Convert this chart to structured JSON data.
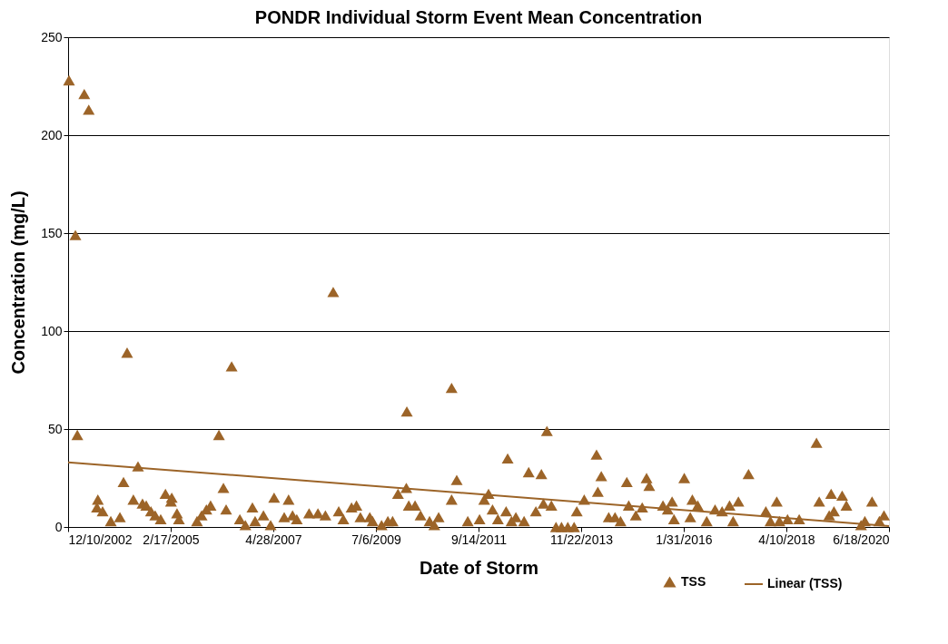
{
  "chart_data": {
    "type": "scatter",
    "title": "PONDR Individual Storm Event Mean Concentration",
    "xlabel": "Date of Storm",
    "ylabel": "Concentration (mg/L)",
    "xlim": [
      "2002-12-10",
      "2020-06-18"
    ],
    "xticks": [
      {
        "value": "2002-12-10",
        "label": "12/10/2002"
      },
      {
        "value": "2005-02-17",
        "label": "2/17/2005"
      },
      {
        "value": "2007-04-28",
        "label": "4/28/2007"
      },
      {
        "value": "2009-07-06",
        "label": "7/6/2009"
      },
      {
        "value": "2011-09-14",
        "label": "9/14/2011"
      },
      {
        "value": "2013-11-22",
        "label": "11/22/2013"
      },
      {
        "value": "2016-01-31",
        "label": "1/31/2016"
      },
      {
        "value": "2018-04-10",
        "label": "4/10/2018"
      },
      {
        "value": "2020-06-18",
        "label": "6/18/2020"
      }
    ],
    "ylim": [
      0,
      250
    ],
    "yticks": [
      0,
      50,
      100,
      150,
      200,
      250
    ],
    "grid": "y",
    "legend": "bottom right",
    "series": [
      {
        "name": "TSS",
        "marker": "triangle",
        "color": "#9c6428",
        "x": [
          "2002-12-17",
          "2003-02-05",
          "2003-02-20",
          "2003-04-15",
          "2003-05-20",
          "2003-07-23",
          "2003-07-30",
          "2003-09-05",
          "2003-11-08",
          "2004-01-18",
          "2004-02-15",
          "2004-03-14",
          "2004-05-02",
          "2004-06-07",
          "2004-07-12",
          "2004-08-10",
          "2004-09-16",
          "2004-10-19",
          "2004-12-01",
          "2005-01-07",
          "2005-02-19",
          "2005-02-25",
          "2005-04-07",
          "2005-04-22",
          "2005-09-10",
          "2005-10-16",
          "2005-11-22",
          "2005-12-25",
          "2006-02-28",
          "2006-04-04",
          "2006-04-25",
          "2006-06-07",
          "2006-08-10",
          "2006-09-22",
          "2006-11-16",
          "2006-12-07",
          "2007-02-10",
          "2007-04-07",
          "2007-05-04",
          "2007-07-22",
          "2007-08-25",
          "2007-09-25",
          "2007-10-28",
          "2008-02-01",
          "2008-04-10",
          "2008-06-07",
          "2008-08-07",
          "2008-09-19",
          "2008-10-25",
          "2008-12-28",
          "2009-02-04",
          "2009-03-07",
          "2009-05-19",
          "2009-06-10",
          "2009-08-19",
          "2009-10-07",
          "2009-11-13",
          "2009-12-25",
          "2010-02-28",
          "2010-03-04",
          "2010-03-19",
          "2010-05-07",
          "2010-06-19",
          "2010-08-28",
          "2010-10-04",
          "2010-11-07",
          "2011-02-16",
          "2011-02-16",
          "2011-03-28",
          "2011-06-22",
          "2011-09-22",
          "2011-10-28",
          "2011-12-01",
          "2012-01-01",
          "2012-02-12",
          "2012-04-16",
          "2012-04-28",
          "2012-05-28",
          "2012-07-01",
          "2012-09-03",
          "2012-10-09",
          "2012-12-04",
          "2013-01-16",
          "2013-02-01",
          "2013-02-28",
          "2013-04-04",
          "2013-05-10",
          "2013-06-22",
          "2013-08-10",
          "2013-09-28",
          "2013-10-19",
          "2013-12-16",
          "2014-03-22",
          "2014-04-01",
          "2014-04-28",
          "2014-06-25",
          "2014-08-13",
          "2014-09-25",
          "2014-11-13",
          "2014-11-28",
          "2015-01-22",
          "2015-03-13",
          "2015-04-16",
          "2015-05-07",
          "2015-08-22",
          "2015-09-28",
          "2015-11-01",
          "2015-11-16",
          "2016-02-04",
          "2016-03-22",
          "2016-04-07",
          "2016-05-19",
          "2016-07-28",
          "2016-10-01",
          "2016-11-25",
          "2017-01-22",
          "2017-02-19",
          "2017-04-01",
          "2017-06-19",
          "2017-11-01",
          "2017-12-07",
          "2018-01-25",
          "2018-02-15",
          "2018-04-19",
          "2018-07-19",
          "2018-12-01",
          "2018-12-22",
          "2019-03-10",
          "2019-03-25",
          "2019-04-16",
          "2019-06-19",
          "2019-07-22",
          "2019-11-13",
          "2019-12-13",
          "2020-02-07",
          "2020-04-04",
          "2020-05-10"
        ],
        "values": [
          228,
          149,
          47,
          221,
          213,
          10,
          14,
          8,
          3,
          5,
          23,
          89,
          14,
          31,
          12,
          11,
          8,
          6,
          4,
          17,
          13,
          15,
          7,
          4,
          3,
          6,
          9,
          11,
          47,
          20,
          9,
          82,
          4,
          1,
          10,
          3,
          6,
          1,
          15,
          5,
          14,
          6,
          4,
          7,
          7,
          6,
          120,
          8,
          4,
          10,
          11,
          5,
          5,
          3,
          1,
          3,
          3,
          17,
          20,
          59,
          11,
          11,
          6,
          3,
          1,
          5,
          14,
          71,
          24,
          3,
          4,
          14,
          17,
          9,
          4,
          8,
          35,
          3,
          5,
          3,
          28,
          8,
          27,
          12,
          49,
          11,
          0,
          0,
          0,
          0,
          8,
          14,
          37,
          18,
          26,
          5,
          5,
          3,
          23,
          11,
          6,
          10,
          25,
          21,
          11,
          9,
          13,
          4,
          25,
          5,
          14,
          11,
          3,
          9,
          8,
          11,
          3,
          13,
          27,
          8,
          3,
          13,
          3,
          4,
          4,
          43,
          13,
          6,
          17,
          8,
          16,
          11,
          1,
          3,
          13,
          3,
          6
        ]
      },
      {
        "name": "Linear (TSS)",
        "type": "line",
        "marker": "none",
        "line_style": "solid",
        "color": "#9c6428",
        "x": [
          "2002-12-10",
          "2020-06-18"
        ],
        "values": [
          33,
          0.5
        ]
      }
    ]
  }
}
